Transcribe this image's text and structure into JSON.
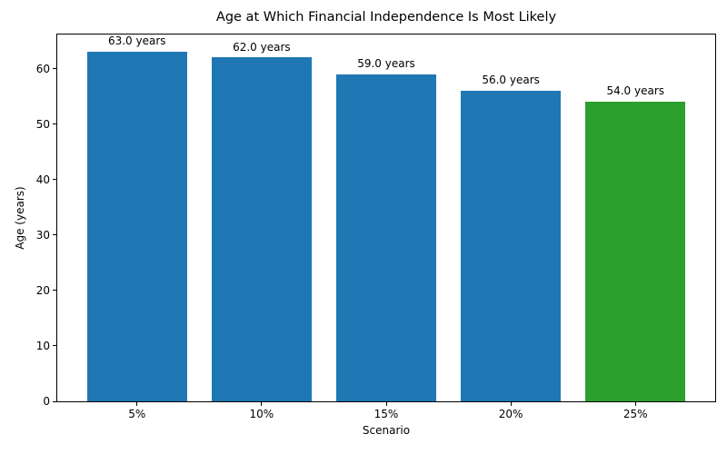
{
  "chart_data": {
    "type": "bar",
    "title": "Age at Which Financial Independence Is Most Likely",
    "xlabel": "Scenario",
    "ylabel": "Age (years)",
    "categories": [
      "5%",
      "10%",
      "15%",
      "20%",
      "25%"
    ],
    "values": [
      63.0,
      62.0,
      59.0,
      56.0,
      54.0
    ],
    "bar_labels": [
      "63.0 years",
      "62.0 years",
      "59.0 years",
      "56.0 years",
      "54.0 years"
    ],
    "bar_colors": [
      "#1f77b4",
      "#1f77b4",
      "#1f77b4",
      "#1f77b4",
      "#2ca02c"
    ],
    "default_bar_color": "#1f77b4",
    "highlight_color": "#2ca02c",
    "ylim": [
      0,
      66.15
    ],
    "yticks": [
      0,
      10,
      20,
      30,
      40,
      50,
      60
    ],
    "grid": false,
    "legend": false,
    "background": "#ffffff",
    "spine_color": "#000000",
    "text_color": "#000000",
    "bar_width_fraction": 0.8
  }
}
